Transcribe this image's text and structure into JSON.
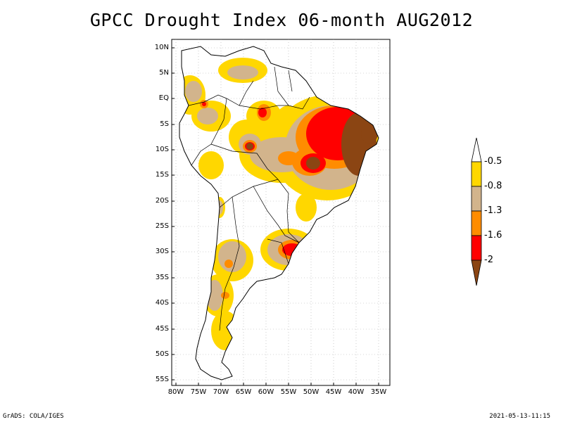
{
  "title": "GPCC Drought Index 06-month AUG2012",
  "map": {
    "lat_ticks": [
      "10N",
      "5N",
      "EQ",
      "5S",
      "10S",
      "15S",
      "20S",
      "25S",
      "30S",
      "35S",
      "40S",
      "45S",
      "50S",
      "55S"
    ],
    "lon_ticks": [
      "80W",
      "75W",
      "70W",
      "65W",
      "60W",
      "55W",
      "50W",
      "45W",
      "40W",
      "35W"
    ],
    "lat_range": [
      -56,
      11
    ],
    "lon_range": [
      -81,
      -33
    ]
  },
  "legend": {
    "labels": [
      "-0.5",
      "-0.8",
      "-1.3",
      "-1.6",
      "-2"
    ],
    "colors": [
      "#ffd700",
      "#d2b48c",
      "#ff8c00",
      "#ff0000",
      "#8b4513"
    ]
  },
  "footer": {
    "left": "GrADS: COLA/IGES",
    "right": "2021-05-13-11:15"
  }
}
